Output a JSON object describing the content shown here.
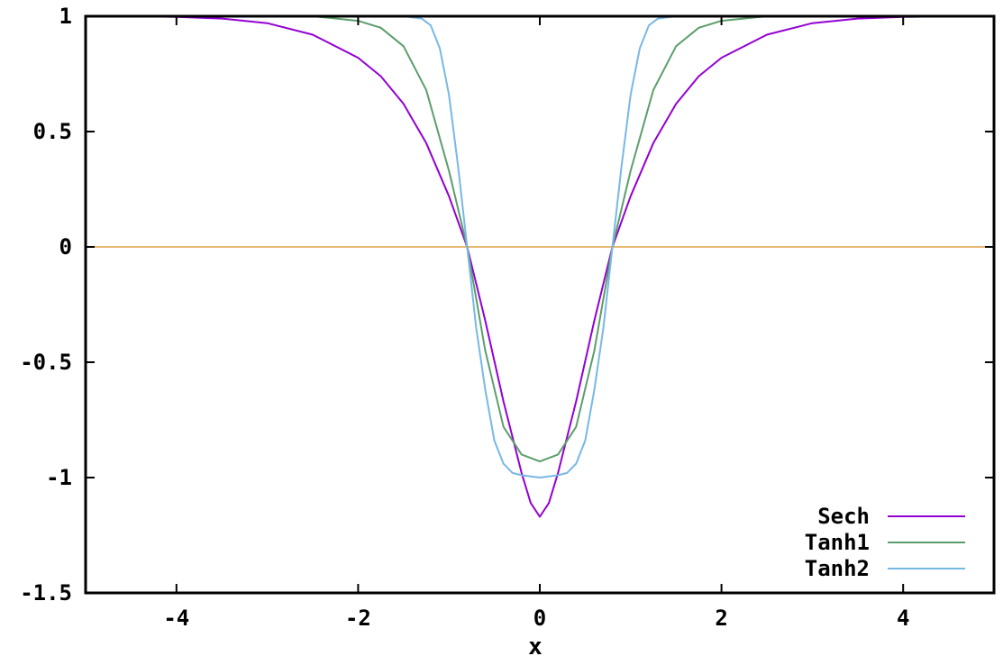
{
  "chart_data": {
    "type": "line",
    "title": "",
    "xlabel": "x",
    "ylabel": "",
    "xlim": [
      -5,
      5
    ],
    "ylim": [
      -1.5,
      1
    ],
    "x_ticks": [
      -4,
      -2,
      0,
      2,
      4
    ],
    "y_ticks": [
      -1.5,
      -1,
      -0.5,
      0,
      0.5,
      1
    ],
    "x_tick_labels": [
      "-4",
      "-2",
      "0",
      "2",
      "4"
    ],
    "y_tick_labels": [
      "-1.5",
      "-1",
      "-0.5",
      "0",
      "0.5",
      "1"
    ],
    "grid": false,
    "legend_position": "bottom-right",
    "zero_line": {
      "y": 0,
      "color": "#e0a040"
    },
    "series": [
      {
        "name": "Sech",
        "color": "#9400d3",
        "x": [
          -5,
          -4.5,
          -4,
          -3.5,
          -3,
          -2.5,
          -2,
          -1.75,
          -1.5,
          -1.25,
          -1,
          -0.8,
          -0.6,
          -0.4,
          -0.2,
          -0.1,
          0,
          0.1,
          0.2,
          0.4,
          0.6,
          0.8,
          1,
          1.25,
          1.5,
          1.75,
          2,
          2.5,
          3,
          3.5,
          4,
          4.5,
          5
        ],
        "y": [
          1.0,
          1.0,
          0.997,
          0.99,
          0.97,
          0.92,
          0.82,
          0.74,
          0.62,
          0.45,
          0.22,
          0.0,
          -0.32,
          -0.67,
          -0.98,
          -1.11,
          -1.17,
          -1.11,
          -0.98,
          -0.67,
          -0.32,
          0.0,
          0.22,
          0.45,
          0.62,
          0.74,
          0.82,
          0.92,
          0.97,
          0.99,
          0.997,
          1.0,
          1.0
        ]
      },
      {
        "name": "Tanh1",
        "color": "#5b9e6b",
        "x": [
          -5,
          -3,
          -2.5,
          -2,
          -1.75,
          -1.5,
          -1.25,
          -1,
          -0.8,
          -0.6,
          -0.4,
          -0.2,
          0,
          0.2,
          0.4,
          0.6,
          0.8,
          1,
          1.25,
          1.5,
          1.75,
          2,
          2.5,
          3,
          5
        ],
        "y": [
          1.0,
          1.0,
          1.0,
          0.98,
          0.95,
          0.87,
          0.68,
          0.33,
          0.0,
          -0.45,
          -0.78,
          -0.9,
          -0.93,
          -0.9,
          -0.78,
          -0.45,
          0.0,
          0.33,
          0.68,
          0.87,
          0.95,
          0.98,
          1.0,
          1.0,
          1.0
        ]
      },
      {
        "name": "Tanh2",
        "color": "#78b8e6",
        "x": [
          -5,
          -2,
          -1.5,
          -1.3,
          -1.2,
          -1.1,
          -1,
          -0.9,
          -0.8,
          -0.7,
          -0.6,
          -0.5,
          -0.4,
          -0.3,
          -0.2,
          0,
          0.2,
          0.3,
          0.4,
          0.5,
          0.6,
          0.7,
          0.8,
          0.9,
          1,
          1.1,
          1.2,
          1.3,
          1.5,
          2,
          5
        ],
        "y": [
          1.0,
          1.0,
          1.0,
          0.99,
          0.96,
          0.86,
          0.66,
          0.35,
          0.0,
          -0.35,
          -0.62,
          -0.84,
          -0.94,
          -0.98,
          -0.99,
          -1.0,
          -0.99,
          -0.98,
          -0.94,
          -0.84,
          -0.62,
          -0.35,
          0.0,
          0.35,
          0.66,
          0.86,
          0.96,
          0.99,
          1.0,
          1.0,
          1.0
        ]
      }
    ]
  }
}
